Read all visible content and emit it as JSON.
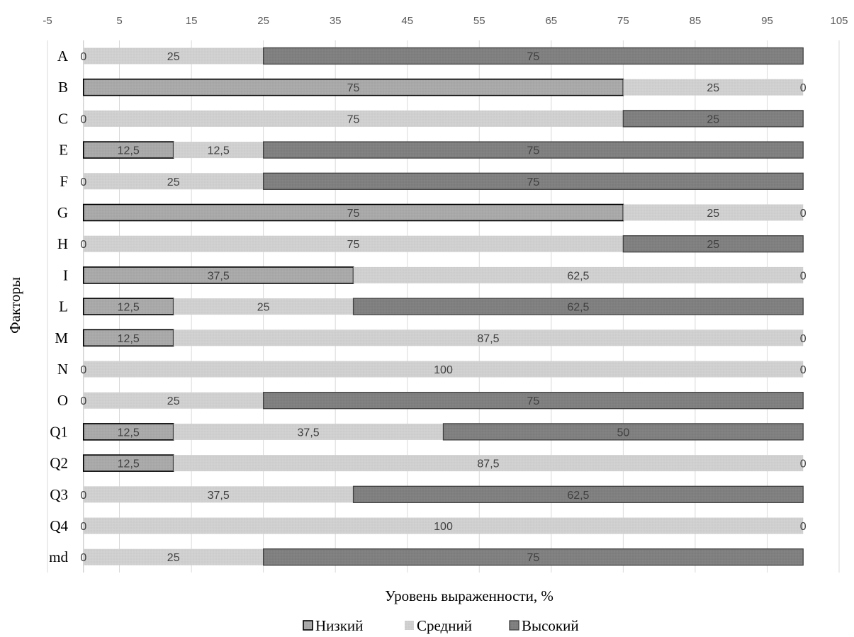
{
  "chart_data": {
    "type": "bar",
    "orientation": "horizontal",
    "stacked": true,
    "categories": [
      "A",
      "B",
      "C",
      "E",
      "F",
      "G",
      "H",
      "I",
      "L",
      "M",
      "N",
      "O",
      "Q1",
      "Q2",
      "Q3",
      "Q4",
      "md"
    ],
    "series": [
      {
        "name": "Низкий",
        "color": "#a6a6a6",
        "values": [
          0,
          75,
          0,
          12.5,
          0,
          75,
          0,
          37.5,
          12.5,
          12.5,
          0,
          0,
          12.5,
          12.5,
          0,
          0,
          0
        ],
        "labels": [
          "0",
          "75",
          "0",
          "12,5",
          "0",
          "75",
          "0",
          "37,5",
          "12,5",
          "12,5",
          "0",
          "0",
          "12,5",
          "12,5",
          "0",
          "0",
          "0"
        ]
      },
      {
        "name": "Средний",
        "color": "#d0d0d0",
        "values": [
          25,
          25,
          75,
          12.5,
          25,
          25,
          75,
          62.5,
          25,
          87.5,
          100,
          25,
          37.5,
          87.5,
          37.5,
          100,
          25
        ],
        "labels": [
          "25",
          "25",
          "75",
          "12,5",
          "25",
          "25",
          "75",
          "62,5",
          "25",
          "87,5",
          "100",
          "25",
          "37,5",
          "87,5",
          "37,5",
          "100",
          "25"
        ]
      },
      {
        "name": "Высокий",
        "color": "#7f7f7f",
        "values": [
          75,
          0,
          25,
          75,
          75,
          0,
          25,
          0,
          62.5,
          0,
          0,
          75,
          50,
          0,
          62.5,
          0,
          75
        ],
        "labels": [
          "75",
          "0",
          "25",
          "75",
          "75",
          "0",
          "25",
          "0",
          "62,5",
          "0",
          "0",
          "75",
          "50",
          "0",
          "62,5",
          "0",
          "75"
        ]
      }
    ],
    "xlabel": "Уровень выраженности, %",
    "ylabel": "Факторы",
    "xlim": [
      -5,
      105
    ],
    "x_ticks": [
      -5,
      5,
      15,
      25,
      35,
      45,
      55,
      65,
      75,
      85,
      95,
      105
    ],
    "x_axis_position": "top",
    "grid": true,
    "legend_position": "bottom"
  }
}
